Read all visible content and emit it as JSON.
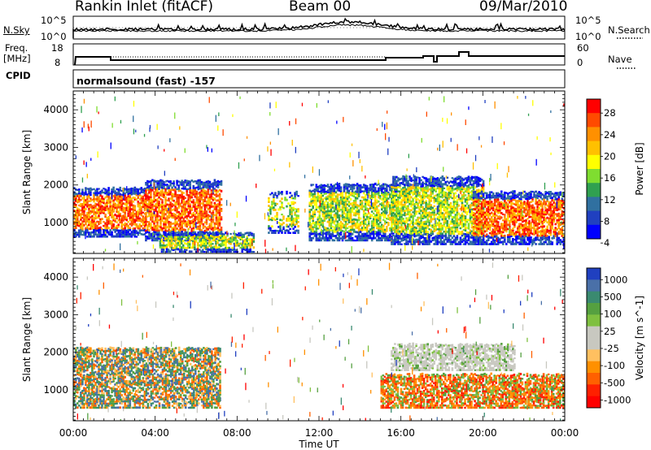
{
  "header": {
    "station": "Rankin Inlet (fitACF)",
    "beam": "Beam 00",
    "date": "09/Mar/2010"
  },
  "top_panel": {
    "left_label": "N.Sky",
    "left_ticks": [
      "10^5",
      "10^0"
    ],
    "right_label": "N.Search",
    "right_ticks": [
      "10^5",
      "10^0"
    ]
  },
  "freq_panel": {
    "left_label_1": "Freq.",
    "left_label_2": "[MHz]",
    "left_ticks": [
      "18",
      "8"
    ],
    "right_label": "Nave",
    "right_ticks": [
      "60",
      "0"
    ]
  },
  "cpid": {
    "label": "CPID",
    "mode": "normalsound (fast) -157"
  },
  "x_axis": {
    "label": "Time UT",
    "ticks": [
      "00:00",
      "04:00",
      "08:00",
      "12:00",
      "16:00",
      "20:00",
      "00:00"
    ]
  },
  "power_panel": {
    "ylabel": "Slant Range [km]",
    "yticks": [
      "4000",
      "3000",
      "2000",
      "1000"
    ],
    "colorbar_label": "Power [dB]",
    "colorbar_ticks": [
      "28",
      "24",
      "20",
      "16",
      "12",
      "8",
      "4"
    ],
    "colors": [
      "#ff0000",
      "#ff4a00",
      "#ff9000",
      "#ffc000",
      "#ffff00",
      "#7fdd30",
      "#30a050",
      "#3070a0",
      "#2040c0",
      "#0000ff"
    ]
  },
  "velocity_panel": {
    "ylabel": "Slant Range [km]",
    "yticks": [
      "4000",
      "3000",
      "2000",
      "1000"
    ],
    "colorbar_label": "Velocity [m s^-1]",
    "colorbar_ticks": [
      "1000",
      "500",
      "100",
      "25",
      "-25",
      "-100",
      "-500",
      "-1000"
    ],
    "colors": [
      "#2040c0",
      "#4a70a8",
      "#3a8a70",
      "#55a040",
      "#7fc040",
      "#c8c8c0",
      "#c8c8c0",
      "#ffc060",
      "#ff9000",
      "#ff6000",
      "#ff2000",
      "#ff0000"
    ]
  },
  "chart_data": {
    "type": "heatmap",
    "x_range_hours": [
      0,
      24
    ],
    "y_range_km": [
      180,
      4500
    ],
    "echo_regions_power": [
      {
        "t": [
          0.0,
          3.5
        ],
        "r": [
          600,
          1900
        ],
        "level": "strong"
      },
      {
        "t": [
          3.5,
          7.2
        ],
        "r": [
          500,
          2100
        ],
        "level": "strong"
      },
      {
        "t": [
          4.2,
          8.8
        ],
        "r": [
          200,
          700
        ],
        "level": "moderate"
      },
      {
        "t": [
          9.5,
          11.0
        ],
        "r": [
          700,
          1800
        ],
        "level": "weak"
      },
      {
        "t": [
          11.5,
          15.8
        ],
        "r": [
          500,
          2000
        ],
        "level": "moderate"
      },
      {
        "t": [
          15.5,
          20.0
        ],
        "r": [
          400,
          2200
        ],
        "level": "moderate"
      },
      {
        "t": [
          19.5,
          24.0
        ],
        "r": [
          400,
          1800
        ],
        "level": "strong"
      }
    ],
    "echo_regions_velocity": [
      {
        "t": [
          0.0,
          7.2
        ],
        "r": [
          500,
          2100
        ],
        "sign": "mixed"
      },
      {
        "t": [
          15.5,
          21.5
        ],
        "r": [
          1500,
          2200
        ],
        "sign": "near-zero"
      },
      {
        "t": [
          15.0,
          24.0
        ],
        "r": [
          500,
          1400
        ],
        "sign": "negative"
      }
    ]
  }
}
